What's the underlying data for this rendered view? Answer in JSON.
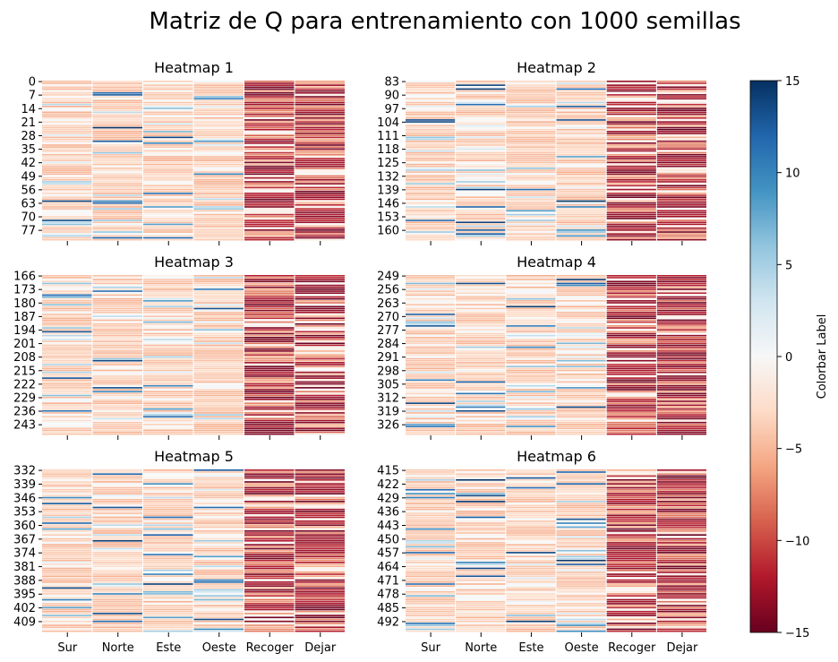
{
  "figure": {
    "title": "Matriz de Q para entrenamiento con 1000 semillas"
  },
  "colorbar": {
    "label": "Colorbar Label",
    "ticks": [
      15,
      10,
      5,
      0,
      -5,
      -10,
      -15
    ],
    "tick_labels": [
      "15",
      "10",
      "5",
      "0",
      "−5",
      "−10",
      "−15"
    ],
    "vmin": -15,
    "vmax": 15,
    "colormap": "RdBu",
    "colors": [
      "#67001f",
      "#b2182b",
      "#d6604d",
      "#f4a582",
      "#fddbc7",
      "#f7f7f7",
      "#d1e5f0",
      "#92c5de",
      "#4393c3",
      "#2166ac",
      "#053061"
    ]
  },
  "chart_data": [
    {
      "type": "heatmap",
      "title": "Heatmap 1",
      "columns": [
        "Sur",
        "Norte",
        "Este",
        "Oeste",
        "Recoger",
        "Dejar"
      ],
      "row_start": 0,
      "row_end": 82,
      "row_tick_labels": [
        "0",
        "7",
        "14",
        "21",
        "28",
        "35",
        "42",
        "49",
        "56",
        "63",
        "70",
        "77"
      ],
      "show_column_labels": false,
      "value_pattern": {
        "movement_columns_typical": -4,
        "recoger_dejar_typical": -11
      }
    },
    {
      "type": "heatmap",
      "title": "Heatmap 2",
      "columns": [
        "Sur",
        "Norte",
        "Este",
        "Oeste",
        "Recoger",
        "Dejar"
      ],
      "row_start": 83,
      "row_end": 165,
      "row_tick_labels": [
        "83",
        "90",
        "97",
        "104",
        "111",
        "118",
        "125",
        "132",
        "139",
        "146",
        "153",
        "160"
      ],
      "show_column_labels": false,
      "value_pattern": {
        "movement_columns_typical": -4,
        "recoger_dejar_typical": -11
      }
    },
    {
      "type": "heatmap",
      "title": "Heatmap 3",
      "columns": [
        "Sur",
        "Norte",
        "Este",
        "Oeste",
        "Recoger",
        "Dejar"
      ],
      "row_start": 166,
      "row_end": 248,
      "row_tick_labels": [
        "166",
        "173",
        "180",
        "187",
        "194",
        "201",
        "208",
        "215",
        "222",
        "229",
        "236",
        "243"
      ],
      "show_column_labels": false,
      "value_pattern": {
        "movement_columns_typical": -4,
        "recoger_dejar_typical": -11
      }
    },
    {
      "type": "heatmap",
      "title": "Heatmap 4",
      "columns": [
        "Sur",
        "Norte",
        "Este",
        "Oeste",
        "Recoger",
        "Dejar"
      ],
      "row_start": 249,
      "row_end": 331,
      "row_tick_labels": [
        "249",
        "256",
        "263",
        "270",
        "277",
        "284",
        "291",
        "298",
        "305",
        "312",
        "319",
        "326"
      ],
      "show_column_labels": false,
      "value_pattern": {
        "movement_columns_typical": -4,
        "recoger_dejar_typical": -11
      }
    },
    {
      "type": "heatmap",
      "title": "Heatmap 5",
      "columns": [
        "Sur",
        "Norte",
        "Este",
        "Oeste",
        "Recoger",
        "Dejar"
      ],
      "row_start": 332,
      "row_end": 414,
      "row_tick_labels": [
        "332",
        "339",
        "346",
        "353",
        "360",
        "367",
        "374",
        "381",
        "388",
        "395",
        "402",
        "409"
      ],
      "show_column_labels": true,
      "value_pattern": {
        "movement_columns_typical": -4,
        "recoger_dejar_typical": -11
      }
    },
    {
      "type": "heatmap",
      "title": "Heatmap 6",
      "columns": [
        "Sur",
        "Norte",
        "Este",
        "Oeste",
        "Recoger",
        "Dejar"
      ],
      "row_start": 415,
      "row_end": 497,
      "row_tick_labels": [
        "415",
        "422",
        "429",
        "436",
        "443",
        "450",
        "457",
        "464",
        "471",
        "478",
        "485",
        "492"
      ],
      "show_column_labels": true,
      "value_pattern": {
        "movement_columns_typical": -4,
        "recoger_dejar_typical": -11
      }
    }
  ]
}
